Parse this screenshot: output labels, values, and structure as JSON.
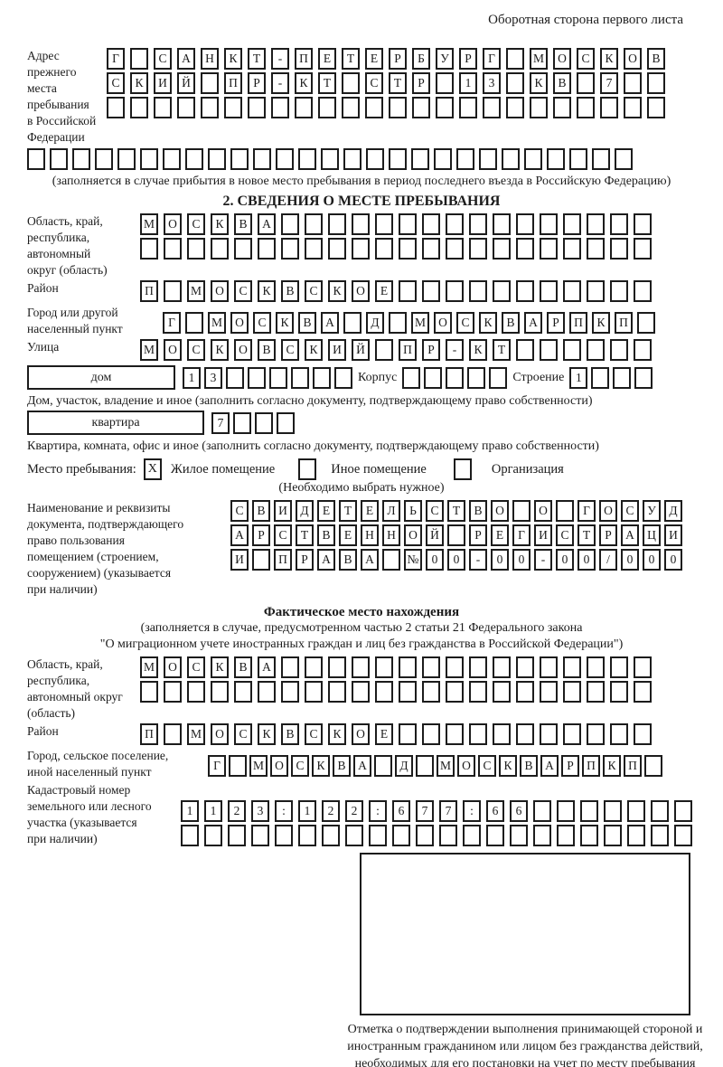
{
  "page": {
    "header_right": "Оборотная сторона первого листа"
  },
  "colors": {
    "ink": "#1c1c1c",
    "background": "#ffffff"
  },
  "section1": {
    "label": "Адрес прежнего\nместа пребывания\nв Российской\nФедерации",
    "rows": [
      "Г САНКТ-ПЕТЕРБУРГ МОСКОВ",
      "СКИЙ ПР-КТ СТР 13 КВ 7  ",
      "                        "
    ],
    "row_full": "                           ",
    "caption": "(заполняется в случае прибытия в новое место пребывания в период последнего въезда в Российскую Федерацию)"
  },
  "section2": {
    "heading": "2. СВЕДЕНИЯ О МЕСТЕ ПРЕБЫВАНИЯ",
    "region": {
      "label": "Область, край,\nреспублика,\nавтономный\nокруг (область)",
      "rows": [
        "МОСКВА                ",
        "                      "
      ]
    },
    "district": {
      "label": "Район",
      "row": "П МОСКВСКОЕ           "
    },
    "city": {
      "label": "Город или другой\nнаселенный пункт",
      "row": "Г МОСКВА Д МОСКВАРПКП "
    },
    "street": {
      "label": "Улица",
      "row": "МОСКОВСКИЙ ПР-КТ      "
    },
    "house": {
      "box_label": "дом",
      "cells": "13      ",
      "korpus_label": "Корпус",
      "korpus_cells": "     ",
      "stroenie_label": "Строение",
      "stroenie_cells": "1   ",
      "caption": "Дом, участок, владение и иное (заполнить согласно документу, подтверждающему право собственности)"
    },
    "apartment": {
      "box_label": "квартира",
      "cells": "7   ",
      "caption": "Квартира, комната, офис и иное (заполнить согласно документу, подтверждающему право собственности)"
    },
    "stay_type": {
      "label": "Место пребывания:",
      "options": [
        {
          "label": "Жилое помещение",
          "mark": "X"
        },
        {
          "label": "Иное помещение",
          "mark": ""
        },
        {
          "label": "Организация",
          "mark": ""
        }
      ],
      "note": "(Необходимо выбрать нужное)"
    },
    "document": {
      "label": "Наименование и реквизиты\nдокумента, подтверждающего\nправо пользования\nпомещением (строением,\nсооружением) (указывается\nпри наличии)",
      "rows": [
        "СВИДЕТЕЛЬСТВО О ГОСУД",
        "АРСТВЕННОЙ РЕГИСТРАЦИ",
        "И ПРАВА №00-00-00/000"
      ]
    }
  },
  "actual_location": {
    "heading": "Фактическое место нахождения",
    "note_lines": [
      "(заполняется в случае, предусмотренном частью 2 статьи 21 Федерального закона",
      "\"О миграционном учете иностранных граждан и лиц без гражданства в Российской Федерации\")"
    ],
    "region": {
      "label": "Область, край,\nреспублика,\nавтономный округ\n(область)",
      "rows": [
        "МОСКВА                ",
        "                      "
      ]
    },
    "district": {
      "label": "Район",
      "row": "П МОСКВСКОЕ           "
    },
    "city": {
      "label": "Город, сельское поселение,\nиной населенный пункт",
      "row": "Г МОСКВА Д МОСКВАРПКП "
    },
    "cadastral": {
      "label": "Кадастровый номер\nземельного или лесного\nучастка (указывается\nпри наличии)",
      "rows": [
        "1123:122:677:66       ",
        "                      "
      ]
    },
    "stamp_caption": "Отметка о подтверждении выполнения принимающей стороной и иностранным гражданином или лицом без гражданства действий, необходимых для его постановки на учет по месту пребывания"
  }
}
